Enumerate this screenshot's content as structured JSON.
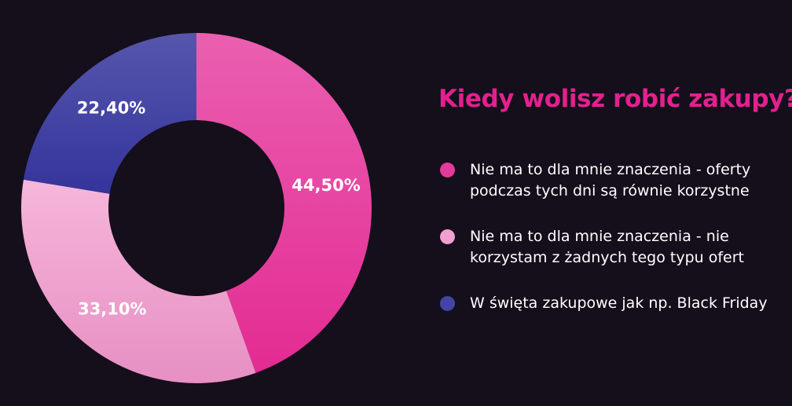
{
  "chart_data": {
    "type": "pie",
    "title": "Kiedy wolisz robić zakupy?",
    "series": [
      {
        "name": "Nie ma to dla mnie znaczenia - oferty podczas tych dni są równie korzystne",
        "value": 44.5,
        "label": "44,50%",
        "color": "#e53a9c"
      },
      {
        "name": "Nie ma to dla mnie znaczenia - nie korzystam z żadnych tego typu ofert",
        "value": 33.1,
        "label": "33,10%",
        "color": "#f0a0cf"
      },
      {
        "name": "W święta zakupowe jak np. Black Friday",
        "value": 22.4,
        "label": "22,40%",
        "color": "#4444a8"
      }
    ],
    "legend_position": "right",
    "hole": true
  }
}
